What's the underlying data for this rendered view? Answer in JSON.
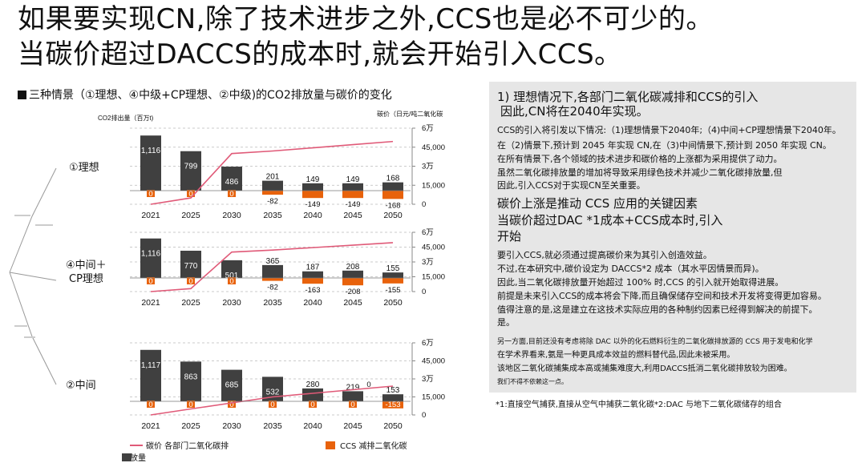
{
  "headline": {
    "line1": "如果要实现CN,除了技术进步之外,CCS也是必不可少的。",
    "line2": "当碳价超过DACCS的成本时,就会开始引入CCS。"
  },
  "section_title": "三种情景（①理想、④中级+CP理想、②中级)的CO2排放量与碳价的变化",
  "axis_titles": {
    "left": "CO2排出量（百万t)",
    "right": "碳价（日元/吨二氧化碳"
  },
  "scenario_labels": [
    "①理想",
    "④中间＋",
    "CP理想",
    "②中间"
  ],
  "legend": {
    "line": "碳价 各部门二氧化碳排放量",
    "orange": "CCS 减排二氧化碳"
  },
  "colors": {
    "bar": "#404040",
    "ccs": "#e8620b",
    "price": "#e05a78",
    "panel": "#e6e6e6"
  },
  "chart_data": [
    {
      "type": "bar",
      "title": "①理想",
      "categories": [
        "2021",
        "2025",
        "2030",
        "2035",
        "2040",
        "2045",
        "2050"
      ],
      "series": [
        {
          "name": "各部门二氧化碳排放量",
          "values": [
            1116,
            799,
            486,
            201,
            149,
            149,
            168
          ]
        },
        {
          "name": "CCS 减排二氧化碳",
          "values": [
            0,
            0,
            0,
            -82,
            -149,
            -149,
            -168
          ]
        },
        {
          "name": "碳价",
          "values": [
            0,
            5000,
            40000,
            42000,
            44500,
            47000,
            49500
          ]
        }
      ],
      "bar_labels": [
        "1,116",
        "799",
        "486",
        "201",
        "149",
        "149",
        "168"
      ],
      "ccs_labels": [
        "0",
        "0",
        "0",
        "-82",
        "-149",
        "-149",
        "-168"
      ],
      "ylim": [
        0,
        1200
      ],
      "y2lim": [
        0,
        60000
      ],
      "y2ticks": [
        "0",
        "15,000",
        "3万",
        "45,000",
        "6万"
      ]
    },
    {
      "type": "bar",
      "title": "④中间＋CP理想",
      "categories": [
        "2021",
        "2025",
        "2030",
        "2035",
        "2040",
        "2045",
        "2050"
      ],
      "series": [
        {
          "name": "各部门二氧化碳排放量",
          "values": [
            1116,
            770,
            501,
            365,
            187,
            208,
            155
          ]
        },
        {
          "name": "CCS 减排二氧化碳",
          "values": [
            0,
            0,
            0,
            -82,
            -163,
            -208,
            -155
          ]
        },
        {
          "name": "碳价",
          "values": [
            0,
            3000,
            40000,
            42000,
            44500,
            47000,
            49500
          ]
        }
      ],
      "bar_labels": [
        "1,116",
        "770",
        "501",
        "365",
        "187",
        "208",
        "155"
      ],
      "ccs_labels": [
        "0",
        "0",
        "0",
        "-82",
        "-163",
        "-208",
        "-155"
      ],
      "ylim": [
        0,
        1200
      ],
      "y2lim": [
        0,
        60000
      ],
      "y2ticks": [
        "0",
        "15,000",
        "3万",
        "45,000",
        "6万"
      ]
    },
    {
      "type": "bar",
      "title": "②中间",
      "categories": [
        "2021",
        "2025",
        "2030",
        "2035",
        "2040",
        "2045",
        "2050"
      ],
      "series": [
        {
          "name": "各部门二氧化碳排放量",
          "values": [
            1117,
            863,
            685,
            532,
            280,
            219,
            153
          ]
        },
        {
          "name": "CCS 减排二氧化碳",
          "values": [
            0,
            0,
            0,
            0,
            0,
            0,
            -153
          ]
        },
        {
          "name": "碳价",
          "values": [
            0,
            5000,
            10000,
            15000,
            18000,
            21000,
            24000
          ]
        }
      ],
      "bar_labels": [
        "1,117",
        "863",
        "685",
        "532",
        "280",
        "219",
        "153"
      ],
      "ccs_labels": [
        "0",
        "0",
        "0",
        "0",
        "0",
        "0",
        "-153"
      ],
      "extra_labels": [
        "0"
      ],
      "ylim": [
        0,
        1200
      ],
      "y2lim": [
        0,
        60000
      ],
      "y2ticks": [
        "0",
        "15,000",
        "3万",
        "45,000",
        "6万"
      ]
    }
  ],
  "right_panel": {
    "h1a": "1) 理想情况下,各部门二氧化碳减排和CCS的引入",
    "h1b": "因此,CN将在2040年实现。",
    "p1": "CCS的引入将引发以下情况:（1)理想情景下2040年;（4)中间+CP理想情景下2040年。",
    "p2": "在（2)情景下,预计到 2045 年实现 CN,在（3)中间情景下,预计到 2050 年实现 CN。",
    "p3": "在所有情景下,各个领域的技术进步和碳价格的上涨都为采用提供了动力。",
    "p4": "虽然二氧化碳排放量的增加将导致采用绿色技术并减少二氧化碳排放量,但",
    "p5": "因此,引入CCS对于实现CN至关重要。",
    "h2a": "碳价上涨是推动 CCS 应用的关键因素",
    "h2b": "当碳价超过DAC *1成本+CCS成本时,引入",
    "h2c": "开始",
    "q1": "要引入CCS,就必须通过提高碳价来为其引入创造效益。",
    "q2": "不过,在本研究中,碳价设定为 DACCS*2 成本（其水平因情景而异)。",
    "q3": "因此,当二氧化碳排放量开始超过 100% 时,CCS 的引入就开始取得进展。",
    "q4": "前提是未来引入CCS的成本将会下降,而且确保储存空间和技术开发将变得更加容易。",
    "q5": "值得注意的是,这是建立在这技术实际应用的各种制约因素已经得到解决的前提下。",
    "q6": "是。",
    "r1": "另一方面,目前还没有考虑将除 DAC 以外的化石燃料衍生的二氧化碳排放源的 CCS 用于发电和化学",
    "r2": "在学术界看来,氨是一种更具成本效益的燃料替代品,因此未被采用。",
    "r3": "该地区二氧化碳捕集成本高或捕集难度大,利用DACCS抵消二氧化碳排放较为困难。",
    "r4": "我们不得不依赖这一点。"
  },
  "footnote": "*1:直接空气捕获,直接从空气中捕获二氧化碳*2:DAC 与地下二氧化碳储存的组合"
}
